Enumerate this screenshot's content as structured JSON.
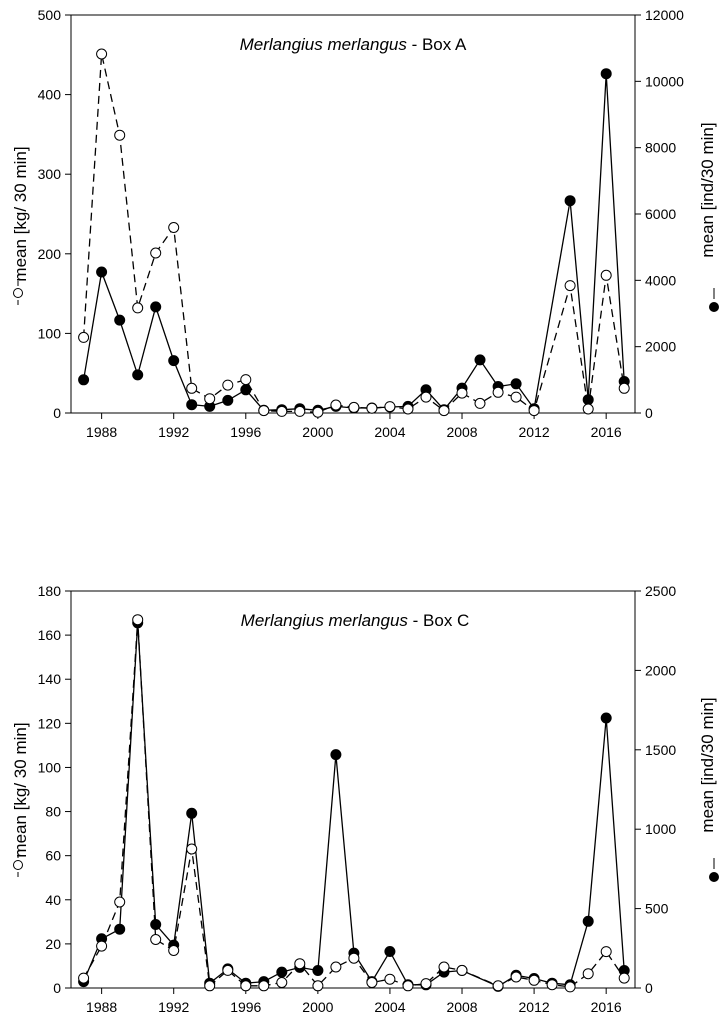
{
  "figure": {
    "background": "#ffffff",
    "line_color": "#000000"
  },
  "chart_data": [
    {
      "type": "line",
      "title_species": "Merlangius merlangus",
      "title_suffix": " - Box A",
      "xlabel": "",
      "ylabel_left": "mean [kg/ 30 min]",
      "ylabel_right": "mean [ind/30 min]",
      "xlim": [
        1986.3,
        2017.6
      ],
      "ylim_left": [
        0,
        500
      ],
      "ylim_right": [
        0,
        12000
      ],
      "xticks": [
        1988,
        1992,
        1996,
        2000,
        2004,
        2008,
        2012,
        2016
      ],
      "yticks_left": [
        0,
        100,
        200,
        300,
        400,
        500
      ],
      "yticks_right": [
        0,
        2000,
        4000,
        6000,
        8000,
        10000,
        12000
      ],
      "grid": false,
      "x": [
        1987,
        1988,
        1989,
        1990,
        1991,
        1992,
        1993,
        1994,
        1995,
        1996,
        1997,
        1998,
        1999,
        2000,
        2001,
        2002,
        2003,
        2004,
        2005,
        2006,
        2007,
        2008,
        2009,
        2010,
        2011,
        2012,
        2014,
        2015,
        2016,
        2017
      ],
      "series": [
        {
          "name": "",
          "axis": "left",
          "marker": "open-circle",
          "line": "dashed",
          "values": [
            95,
            451,
            349,
            132,
            201,
            233,
            31,
            18,
            35,
            42,
            3,
            2,
            2,
            1,
            10,
            7,
            6,
            8,
            5,
            20,
            3,
            25,
            12,
            26,
            20,
            3,
            160,
            5,
            173,
            31
          ]
        },
        {
          "name": "",
          "axis": "right",
          "marker": "filled-circle",
          "line": "solid",
          "values": [
            1000,
            4250,
            2800,
            1150,
            3200,
            1580,
            250,
            200,
            380,
            700,
            80,
            100,
            130,
            80,
            200,
            150,
            150,
            180,
            200,
            700,
            100,
            750,
            1600,
            800,
            880,
            130,
            6400,
            400,
            10230,
            950
          ]
        }
      ]
    },
    {
      "type": "line",
      "title_species": "Merlangius merlangus",
      "title_suffix": " - Box C",
      "xlabel": "",
      "ylabel_left": "mean [kg/ 30 min]",
      "ylabel_right": "mean [ind/30 min]",
      "xlim": [
        1986.3,
        2017.6
      ],
      "ylim_left": [
        0,
        180
      ],
      "ylim_right": [
        0,
        2500
      ],
      "xticks": [
        1988,
        1992,
        1996,
        2000,
        2004,
        2008,
        2012,
        2016
      ],
      "yticks_left": [
        0,
        20,
        40,
        60,
        80,
        100,
        120,
        140,
        160,
        180
      ],
      "yticks_right": [
        0,
        500,
        1000,
        1500,
        2000,
        2500
      ],
      "grid": false,
      "x": [
        1987,
        1988,
        1989,
        1990,
        1991,
        1992,
        1993,
        1994,
        1995,
        1996,
        1997,
        1998,
        1999,
        2000,
        2001,
        2002,
        2003,
        2004,
        2005,
        2006,
        2007,
        2008,
        2010,
        2011,
        2012,
        2013,
        2014,
        2015,
        2016,
        2017
      ],
      "series": [
        {
          "name": "",
          "axis": "left",
          "marker": "open-circle",
          "line": "dashed",
          "values": [
            4.5,
            19,
            39,
            167,
            22,
            17,
            63,
            1,
            8,
            1,
            1,
            2.5,
            11,
            1,
            9.5,
            13.5,
            2.5,
            4,
            1,
            2,
            9.5,
            8,
            1,
            5,
            3.5,
            1.5,
            0.5,
            6.5,
            16.5,
            4.5
          ]
        },
        {
          "name": "",
          "axis": "right",
          "marker": "filled-circle",
          "line": "solid",
          "values": [
            40,
            310,
            370,
            2300,
            400,
            270,
            1100,
            30,
            120,
            30,
            40,
            100,
            130,
            110,
            1470,
            220,
            40,
            230,
            20,
            20,
            100,
            110,
            10,
            80,
            60,
            30,
            20,
            420,
            1700,
            110
          ]
        }
      ]
    }
  ]
}
